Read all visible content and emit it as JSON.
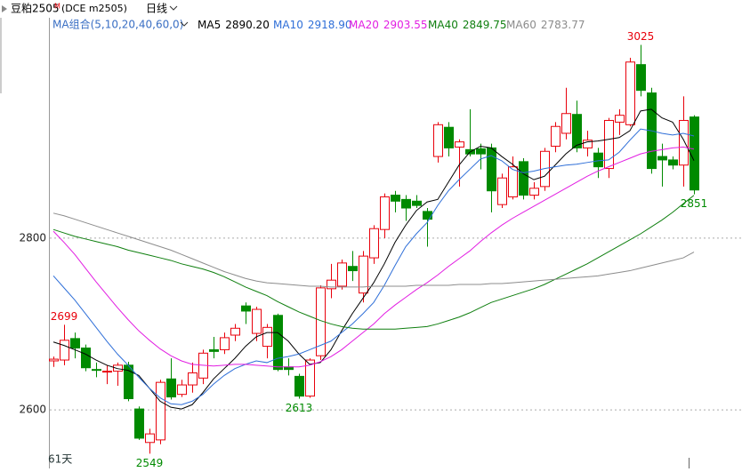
{
  "chart_data": {
    "type": "candlestick",
    "header": {
      "symbol": "豆粕2505",
      "suffix": "M",
      "exchange": "(DCE m2505)",
      "period": "日线"
    },
    "ma_group": "MA组合(5,10,20,40,60,0)",
    "day_count": "61天",
    "up_color": "#e8000b",
    "down_color": "#008a00",
    "ylim": [
      2539,
      3041
    ],
    "yticks": [
      2600,
      2800
    ],
    "grid": true,
    "open": [
      2657,
      2658,
      2683,
      2672,
      2647,
      2644,
      2645,
      2652,
      2601,
      2562,
      2565,
      2636,
      2618,
      2629,
      2637,
      2670,
      2670,
      2687,
      2721,
      2689,
      2674,
      2710,
      2650,
      2639,
      2616,
      2663,
      2741,
      2744,
      2767,
      2736,
      2777,
      2810,
      2850,
      2845,
      2843,
      2831,
      2895,
      2929,
      2906,
      2903,
      2904,
      2905,
      2839,
      2848,
      2889,
      2850,
      2860,
      2907,
      2922,
      2944,
      2905,
      2899,
      2881,
      2935,
      2932,
      3002,
      2969,
      2895,
      2891,
      2885,
      2941
    ],
    "high": [
      2662,
      2699,
      2690,
      2676,
      2655,
      2652,
      2655,
      2656,
      2604,
      2578,
      2635,
      2660,
      2635,
      2655,
      2670,
      2685,
      2690,
      2700,
      2725,
      2720,
      2700,
      2712,
      2660,
      2642,
      2660,
      2745,
      2770,
      2775,
      2785,
      2785,
      2815,
      2852,
      2855,
      2850,
      2850,
      2835,
      2935,
      2935,
      2915,
      2950,
      2910,
      2910,
      2875,
      2895,
      2893,
      2865,
      2905,
      2935,
      2975,
      2960,
      2925,
      2905,
      2940,
      2950,
      3010,
      3025,
      2975,
      2910,
      2895,
      2965,
      2943
    ],
    "low": [
      2650,
      2652,
      2660,
      2645,
      2638,
      2630,
      2628,
      2610,
      2565,
      2549,
      2560,
      2612,
      2615,
      2620,
      2630,
      2660,
      2665,
      2680,
      2700,
      2680,
      2660,
      2645,
      2640,
      2613,
      2614,
      2658,
      2730,
      2740,
      2750,
      2725,
      2770,
      2800,
      2830,
      2820,
      2835,
      2790,
      2888,
      2895,
      2860,
      2895,
      2880,
      2830,
      2835,
      2845,
      2845,
      2845,
      2855,
      2900,
      2915,
      2900,
      2895,
      2870,
      2870,
      2920,
      2930,
      2965,
      2875,
      2860,
      2880,
      2860,
      2851
    ],
    "close": [
      2659,
      2681,
      2672,
      2649,
      2646,
      2645,
      2652,
      2613,
      2567,
      2572,
      2632,
      2615,
      2629,
      2643,
      2666,
      2668,
      2684,
      2695,
      2715,
      2717,
      2696,
      2647,
      2647,
      2616,
      2658,
      2742,
      2751,
      2771,
      2762,
      2779,
      2811,
      2848,
      2843,
      2835,
      2838,
      2822,
      2932,
      2905,
      2912,
      2898,
      2898,
      2855,
      2870,
      2883,
      2850,
      2858,
      2901,
      2930,
      2945,
      2905,
      2914,
      2883,
      2937,
      2943,
      3005,
      2972,
      2881,
      2891,
      2885,
      2937,
      2856
    ],
    "labeled_highs": [
      1,
      55
    ],
    "labeled_lows": [
      9,
      23,
      60
    ],
    "series": [
      {
        "name": "MA5",
        "color": "#000000",
        "values": [
          2679,
          2675,
          2670,
          2665,
          2658,
          2652,
          2648,
          2646,
          2640,
          2625,
          2610,
          2603,
          2601,
          2606,
          2620,
          2636,
          2648,
          2660,
          2674,
          2685,
          2690,
          2690,
          2680,
          2665,
          2653,
          2655,
          2670,
          2692,
          2712,
          2730,
          2748,
          2770,
          2795,
          2815,
          2832,
          2842,
          2845,
          2865,
          2885,
          2900,
          2907,
          2905,
          2895,
          2886,
          2875,
          2868,
          2872,
          2885,
          2898,
          2908,
          2912,
          2913,
          2915,
          2917,
          2925,
          2948,
          2950,
          2940,
          2935,
          2915,
          2890.2
        ],
        "value_labels": [
          null,
          null,
          null,
          null,
          null,
          null,
          null,
          null,
          null,
          null,
          null,
          null,
          null,
          null,
          null,
          null,
          null,
          null,
          null,
          null,
          null,
          null,
          null,
          null,
          null,
          null,
          null,
          null,
          null,
          null,
          null,
          null,
          null,
          null,
          null,
          null,
          null,
          null,
          null,
          null,
          null,
          null,
          null,
          null,
          null,
          null,
          null,
          null,
          null,
          null,
          null,
          null,
          null,
          null,
          null,
          null,
          null,
          null,
          null,
          null,
          "2890.20"
        ]
      },
      {
        "name": "MA10",
        "color": "#2f6fd8",
        "values": [
          2756,
          2742,
          2728,
          2712,
          2696,
          2680,
          2665,
          2652,
          2638,
          2625,
          2614,
          2607,
          2606,
          2610,
          2618,
          2630,
          2640,
          2648,
          2653,
          2657,
          2655,
          2660,
          2662,
          2665,
          2670,
          2675,
          2680,
          2690,
          2700,
          2712,
          2725,
          2745,
          2768,
          2790,
          2805,
          2818,
          2838,
          2855,
          2868,
          2880,
          2892,
          2896,
          2890,
          2880,
          2876,
          2878,
          2881,
          2883,
          2885,
          2886,
          2888,
          2890,
          2891,
          2900,
          2914,
          2927,
          2925,
          2922,
          2920,
          2922,
          2918.9
        ],
        "value_labels": [
          null,
          null,
          null,
          null,
          null,
          null,
          null,
          null,
          null,
          null,
          null,
          null,
          null,
          null,
          null,
          null,
          null,
          null,
          null,
          null,
          null,
          null,
          null,
          null,
          null,
          null,
          null,
          null,
          null,
          null,
          null,
          null,
          null,
          null,
          null,
          null,
          null,
          null,
          null,
          null,
          null,
          null,
          null,
          null,
          null,
          null,
          null,
          null,
          null,
          null,
          null,
          null,
          null,
          null,
          null,
          null,
          null,
          null,
          null,
          null,
          "2918.90"
        ]
      },
      {
        "name": "MA20",
        "color": "#e21ee2",
        "values": [
          2808,
          2795,
          2781,
          2765,
          2749,
          2734,
          2719,
          2705,
          2692,
          2681,
          2671,
          2663,
          2657,
          2653,
          2652,
          2651,
          2652,
          2653,
          2653,
          2652,
          2651,
          2650,
          2650,
          2650,
          2652,
          2656,
          2662,
          2670,
          2680,
          2690,
          2700,
          2712,
          2722,
          2731,
          2740,
          2748,
          2757,
          2767,
          2776,
          2785,
          2796,
          2806,
          2815,
          2823,
          2830,
          2837,
          2844,
          2851,
          2858,
          2865,
          2872,
          2878,
          2883,
          2888,
          2893,
          2898,
          2901,
          2903,
          2905,
          2906,
          2903.55
        ]
      },
      {
        "name": "MA40",
        "color": "#0f7f0f",
        "values": [
          2810,
          2806,
          2802,
          2799,
          2796,
          2793,
          2790,
          2786,
          2783,
          2780,
          2777,
          2774,
          2770,
          2767,
          2764,
          2760,
          2755,
          2749,
          2743,
          2738,
          2733,
          2726,
          2720,
          2714,
          2709,
          2704,
          2700,
          2697,
          2695,
          2694,
          2694,
          2694,
          2694,
          2695,
          2696,
          2697,
          2700,
          2704,
          2708,
          2713,
          2719,
          2725,
          2729,
          2733,
          2737,
          2741,
          2746,
          2752,
          2758,
          2764,
          2770,
          2777,
          2784,
          2791,
          2798,
          2805,
          2813,
          2821,
          2830,
          2840,
          2849.75
        ]
      },
      {
        "name": "MA60",
        "color": "#8c8c8c",
        "values": [
          2829,
          2826,
          2822,
          2818,
          2814,
          2810,
          2806,
          2802,
          2798,
          2794,
          2790,
          2786,
          2781,
          2776,
          2771,
          2766,
          2761,
          2757,
          2753,
          2750,
          2748,
          2747,
          2746,
          2745,
          2744,
          2744,
          2743,
          2743,
          2743,
          2743,
          2744,
          2744,
          2744,
          2744,
          2745,
          2745,
          2745,
          2745,
          2746,
          2746,
          2746,
          2747,
          2747,
          2748,
          2749,
          2750,
          2751,
          2752,
          2753,
          2754,
          2755,
          2756,
          2758,
          2760,
          2762,
          2765,
          2768,
          2771,
          2774,
          2777,
          2783.77
        ]
      }
    ]
  }
}
